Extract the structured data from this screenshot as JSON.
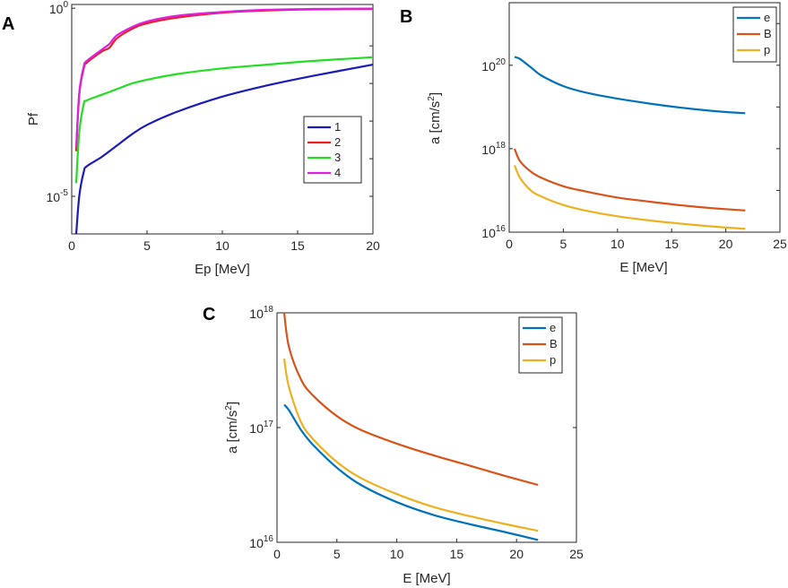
{
  "figure": {
    "panels": [
      "A",
      "B",
      "C"
    ]
  },
  "chart_data": [
    {
      "panel": "A",
      "type": "line",
      "title": "",
      "xlabel": "Ep [MeV]",
      "ylabel": "Pf",
      "xlim": [
        0,
        20
      ],
      "ylim_log10": [
        -6,
        0.1
      ],
      "yscale": "log",
      "x_ticks": [
        "0",
        "5",
        "10",
        "15",
        "20"
      ],
      "y_ticks": [
        {
          "base": "10",
          "exp": "0",
          "log": 0
        },
        {
          "base": "10",
          "exp": "-5",
          "log": -5
        }
      ],
      "legend_position": "bottom-right",
      "series": [
        {
          "name": "1",
          "color": "#1a1ab8",
          "x": [
            0.3,
            0.5,
            0.8,
            1,
            2,
            3,
            4,
            5,
            7,
            10,
            13,
            16,
            20
          ],
          "log10_y": [
            -6,
            -5,
            -4.35,
            -4.2,
            -3.95,
            -3.65,
            -3.35,
            -3.1,
            -2.75,
            -2.35,
            -2.05,
            -1.8,
            -1.5
          ]
        },
        {
          "name": "2",
          "color": "#e82020",
          "x": [
            0.3,
            0.5,
            0.8,
            1,
            2,
            2.5,
            3,
            4,
            5,
            7,
            10,
            13,
            16,
            20
          ],
          "log10_y": [
            -3.8,
            -2.3,
            -1.6,
            -1.45,
            -1.15,
            -1.05,
            -0.8,
            -0.55,
            -0.4,
            -0.25,
            -0.12,
            -0.06,
            -0.03,
            -0.02
          ]
        },
        {
          "name": "3",
          "color": "#22dd22",
          "x": [
            0.3,
            0.5,
            0.8,
            1,
            2,
            3,
            4,
            5,
            7,
            10,
            13,
            16,
            20
          ],
          "log10_y": [
            -4.65,
            -3.3,
            -2.55,
            -2.45,
            -2.3,
            -2.15,
            -2.0,
            -1.9,
            -1.75,
            -1.6,
            -1.5,
            -1.4,
            -1.3
          ]
        },
        {
          "name": "4",
          "color": "#e020e0",
          "x": [
            0.3,
            0.5,
            0.8,
            1,
            2,
            2.5,
            3,
            4,
            5,
            7,
            10,
            13,
            16,
            20
          ],
          "log10_y": [
            -3.7,
            -2.25,
            -1.55,
            -1.4,
            -1.1,
            -0.95,
            -0.72,
            -0.5,
            -0.35,
            -0.2,
            -0.1,
            -0.04,
            -0.02,
            -0.01
          ]
        }
      ]
    },
    {
      "panel": "B",
      "type": "line",
      "title": "",
      "xlabel": "E  [MeV]",
      "ylabel_main": "a [cm/s",
      "ylabel_sup": "2",
      "ylabel_end": "]",
      "xlim": [
        0,
        25
      ],
      "ylim_log10": [
        16,
        21.5
      ],
      "yscale": "log",
      "x_ticks": [
        "0",
        "5",
        "10",
        "15",
        "20",
        "25"
      ],
      "y_ticks": [
        {
          "base": "10",
          "exp": "20",
          "log": 20
        },
        {
          "base": "10",
          "exp": "18",
          "log": 18
        },
        {
          "base": "10",
          "exp": "16",
          "log": 16
        }
      ],
      "legend_position": "top-right",
      "series": [
        {
          "name": "e",
          "color": "#0072bd",
          "x": [
            0.5,
            1,
            2,
            3,
            5,
            7,
            10,
            13,
            16,
            19,
            21.8
          ],
          "log10_y": [
            20.2,
            20.15,
            19.95,
            19.75,
            19.5,
            19.35,
            19.2,
            19.08,
            18.98,
            18.9,
            18.85
          ]
        },
        {
          "name": "B",
          "color": "#d95319",
          "x": [
            0.5,
            1,
            2,
            3,
            5,
            7,
            10,
            13,
            16,
            19,
            21.8
          ],
          "log10_y": [
            18,
            17.7,
            17.45,
            17.3,
            17.1,
            16.98,
            16.83,
            16.73,
            16.64,
            16.57,
            16.52
          ]
        },
        {
          "name": "p",
          "color": "#edb120",
          "x": [
            0.5,
            1,
            2,
            3,
            5,
            7,
            10,
            13,
            16,
            19,
            21.8
          ],
          "log10_y": [
            17.6,
            17.3,
            17.0,
            16.85,
            16.65,
            16.52,
            16.38,
            16.28,
            16.2,
            16.13,
            16.08
          ]
        }
      ]
    },
    {
      "panel": "C",
      "type": "line",
      "title": "",
      "xlabel": "E  [MeV]",
      "ylabel_main": "a [cm/s",
      "ylabel_sup": "2",
      "ylabel_end": "]",
      "xlim": [
        0,
        25
      ],
      "ylim_log10": [
        16,
        18
      ],
      "yscale": "log",
      "x_ticks": [
        "0",
        "5",
        "10",
        "15",
        "20",
        "25"
      ],
      "y_ticks": [
        {
          "base": "10",
          "exp": "18",
          "log": 18
        },
        {
          "base": "10",
          "exp": "17",
          "log": 17
        },
        {
          "base": "10",
          "exp": "16",
          "log": 16
        }
      ],
      "legend_position": "top-right",
      "series": [
        {
          "name": "e",
          "color": "#0072bd",
          "x": [
            0.6,
            1,
            2,
            3,
            5,
            7,
            10,
            13,
            16,
            19,
            21.8
          ],
          "log10_y": [
            17.2,
            17.15,
            16.98,
            16.85,
            16.65,
            16.5,
            16.35,
            16.24,
            16.16,
            16.09,
            16.02
          ]
        },
        {
          "name": "B",
          "color": "#d95319",
          "x": [
            0.6,
            1,
            2,
            3,
            5,
            7,
            10,
            13,
            16,
            19,
            21.8
          ],
          "log10_y": [
            18,
            17.7,
            17.42,
            17.28,
            17.1,
            16.98,
            16.86,
            16.76,
            16.67,
            16.58,
            16.5
          ]
        },
        {
          "name": "p",
          "color": "#edb120",
          "x": [
            0.6,
            1,
            2,
            3,
            5,
            7,
            10,
            13,
            16,
            19,
            21.8
          ],
          "log10_y": [
            17.6,
            17.35,
            17.05,
            16.9,
            16.7,
            16.56,
            16.42,
            16.31,
            16.23,
            16.16,
            16.1
          ]
        }
      ]
    }
  ]
}
